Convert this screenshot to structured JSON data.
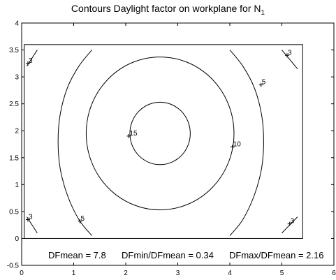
{
  "chart_data": {
    "type": "contour",
    "title": "Contours Daylight factor on workplane  for N",
    "title_subscript": "1",
    "xlim": [
      0,
      6
    ],
    "ylim": [
      -0.5,
      4
    ],
    "x_ticks": [
      "0",
      "1",
      "2",
      "3",
      "4",
      "5",
      "6"
    ],
    "y_ticks": [
      "-0.5",
      "0",
      "0.5",
      "1",
      "1.5",
      "2",
      "2.5",
      "3",
      "3.5",
      "4"
    ],
    "room": {
      "x": [
        0.05,
        5.4
      ],
      "y": [
        0,
        3.6
      ]
    },
    "contours": [
      {
        "level": "15",
        "shape": "circle",
        "cx": 2.66,
        "cy": 1.95,
        "r": 0.58
      },
      {
        "level": "10",
        "shape": "circle",
        "cx": 2.66,
        "cy": 1.95,
        "r": 1.42
      },
      {
        "level": "5",
        "side": "left",
        "points": [
          [
            1.35,
            3.5
          ],
          [
            1.1,
            3.2
          ],
          [
            0.88,
            2.8
          ],
          [
            0.74,
            2.3
          ],
          [
            0.7,
            1.8
          ],
          [
            0.74,
            1.3
          ],
          [
            0.88,
            0.8
          ],
          [
            1.1,
            0.35
          ],
          [
            1.35,
            0.05
          ]
        ]
      },
      {
        "level": "5",
        "side": "right",
        "points": [
          [
            4.0,
            3.5
          ],
          [
            4.25,
            3.2
          ],
          [
            4.47,
            2.8
          ],
          [
            4.61,
            2.3
          ],
          [
            4.65,
            1.8
          ],
          [
            4.61,
            1.3
          ],
          [
            4.47,
            0.8
          ],
          [
            4.25,
            0.35
          ],
          [
            4.0,
            0.05
          ]
        ]
      },
      {
        "level": "3",
        "corner": "top-left",
        "points": [
          [
            0.1,
            3.2
          ],
          [
            0.3,
            3.5
          ]
        ]
      },
      {
        "level": "3",
        "corner": "top-right",
        "points": [
          [
            5.0,
            3.5
          ],
          [
            5.3,
            3.15
          ]
        ]
      },
      {
        "level": "3",
        "corner": "bottom-left",
        "points": [
          [
            0.1,
            0.4
          ],
          [
            0.3,
            0.1
          ]
        ]
      },
      {
        "level": "3",
        "corner": "bottom-right",
        "points": [
          [
            5.0,
            0.1
          ],
          [
            5.3,
            0.4
          ]
        ]
      }
    ],
    "contour_labels": [
      {
        "text": "15",
        "x": 2.06,
        "y": 1.9
      },
      {
        "text": "10",
        "x": 4.05,
        "y": 1.7
      },
      {
        "text": "5",
        "x": 4.6,
        "y": 2.85
      },
      {
        "text": "5",
        "x": 1.12,
        "y": 0.32
      },
      {
        "text": "3",
        "x": 0.12,
        "y": 3.25
      },
      {
        "text": "3",
        "x": 5.1,
        "y": 3.4
      },
      {
        "text": "3",
        "x": 0.12,
        "y": 0.35
      },
      {
        "text": "3",
        "x": 5.15,
        "y": 0.27
      }
    ],
    "annotations": {
      "dfmean": "DFmean =  7.8",
      "dfmin": "DFmin/DFmean = 0.34",
      "dfmax": "DFmax/DFmean =  2.16"
    },
    "grid": false
  }
}
